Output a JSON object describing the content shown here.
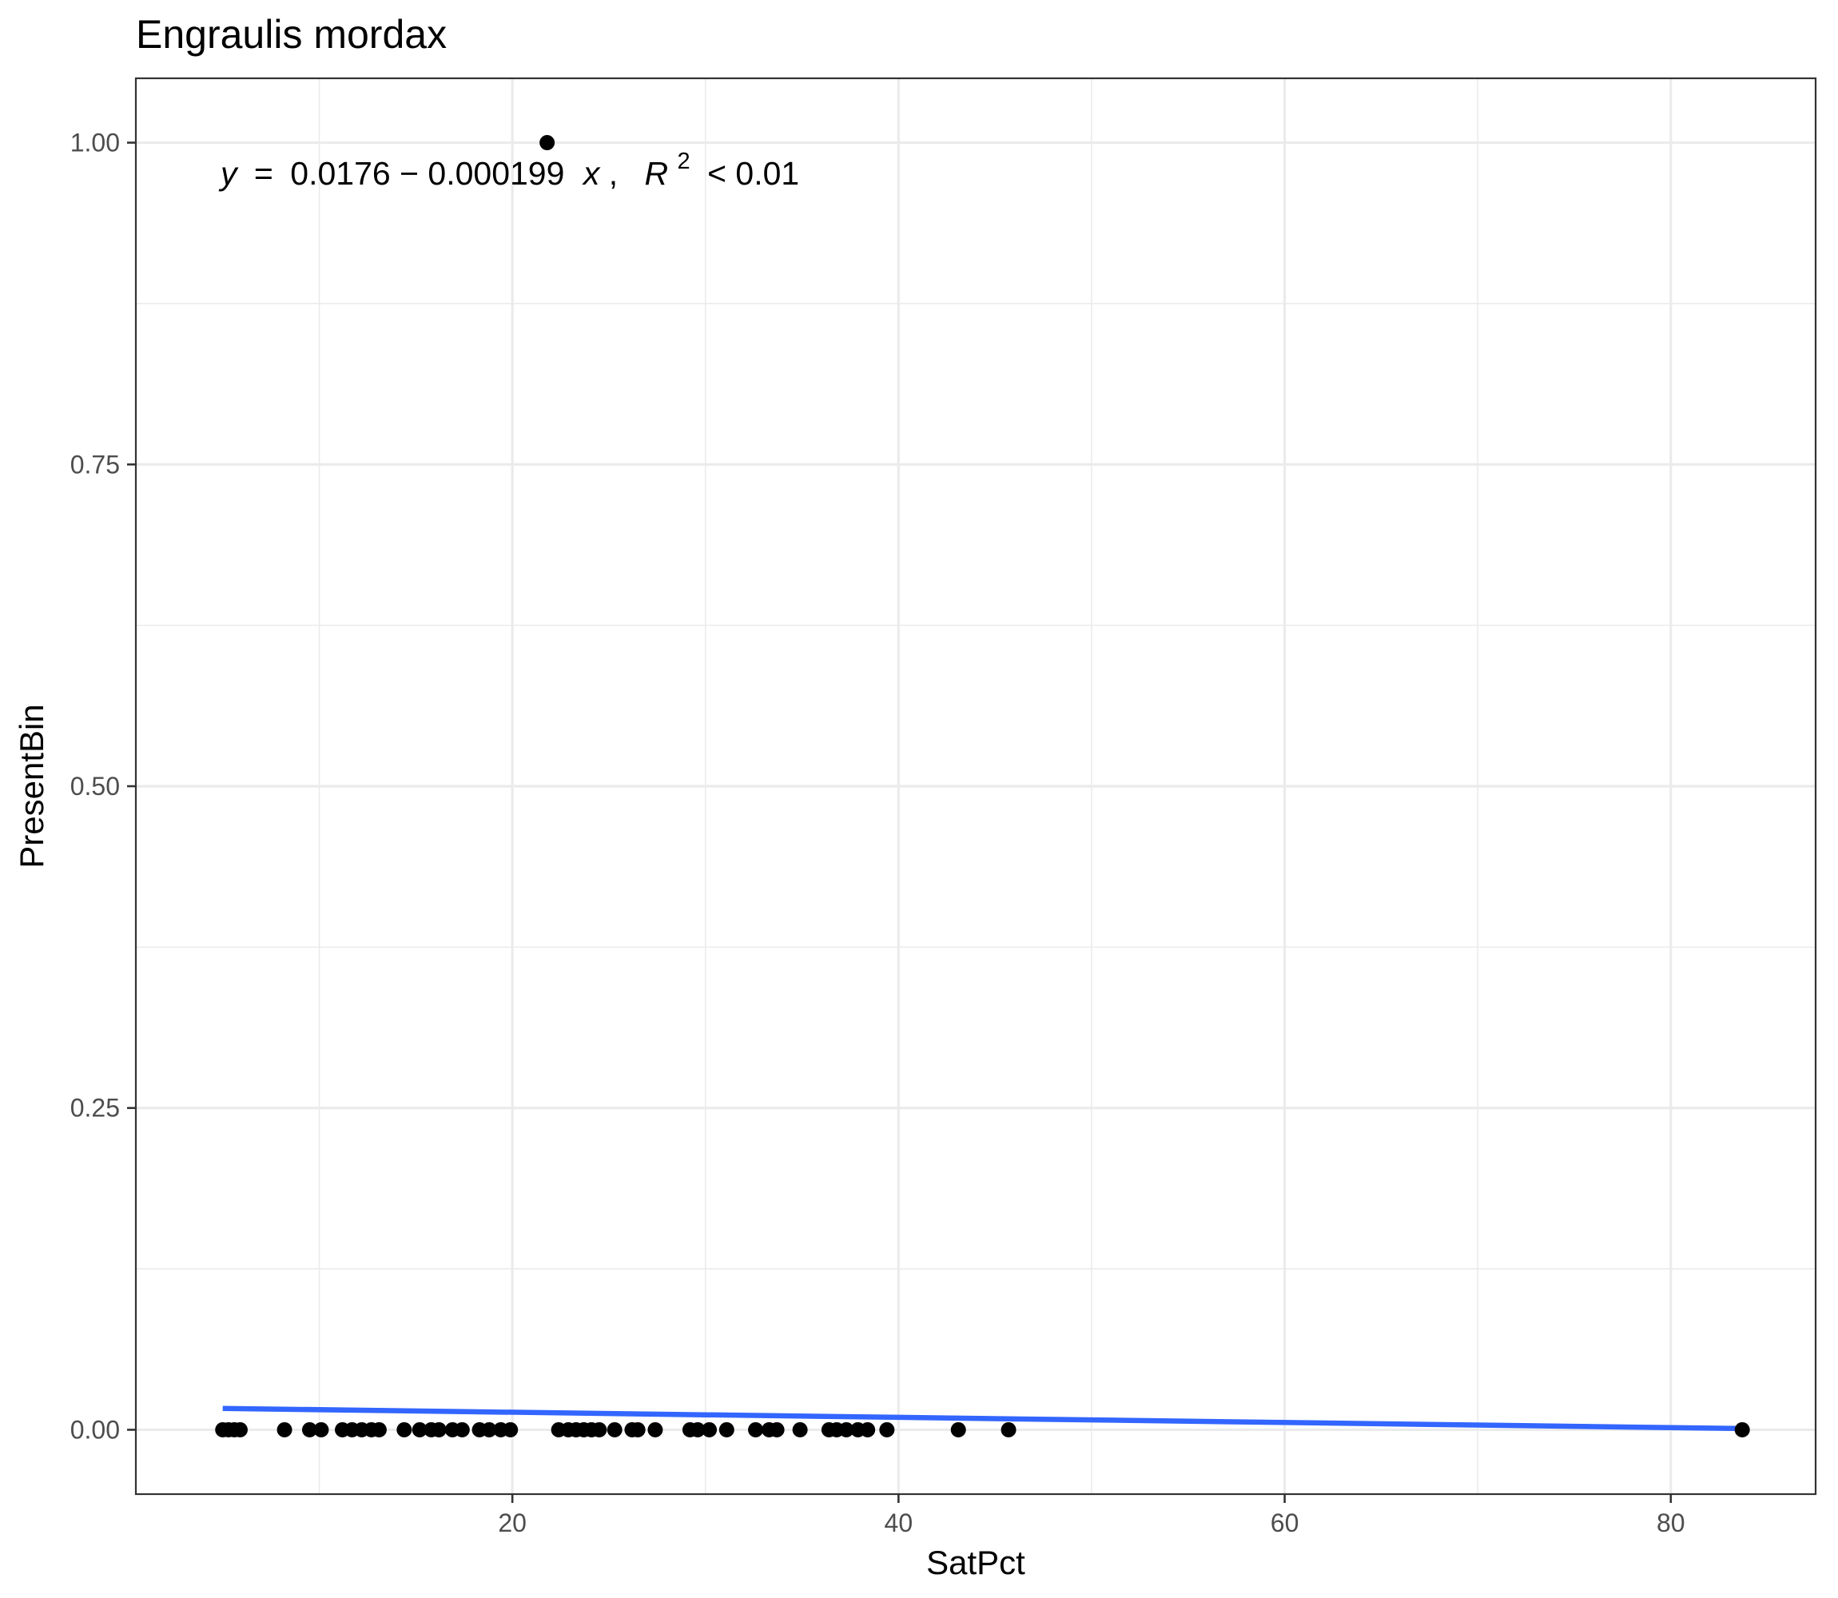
{
  "chart_data": {
    "type": "scatter",
    "title": "Engraulis mordax",
    "xlabel": "SatPct",
    "ylabel": "PresentBin",
    "xlim": [
      0.5,
      87.5
    ],
    "ylim": [
      -0.05,
      1.05
    ],
    "x_ticks": [
      20,
      40,
      60,
      80
    ],
    "x_tick_labels": [
      "20",
      "40",
      "60",
      "80"
    ],
    "y_ticks": [
      0,
      0.25,
      0.5,
      0.75,
      1.0
    ],
    "y_tick_labels": [
      "0.00",
      "0.25",
      "0.50",
      "0.75",
      "1.00"
    ],
    "grid": true,
    "legend": "none",
    "points": {
      "color": "#000000",
      "x": [
        5.0,
        5.3,
        5.6,
        5.9,
        8.2,
        9.5,
        10.1,
        11.2,
        11.7,
        12.2,
        12.7,
        13.1,
        14.4,
        15.2,
        15.8,
        16.2,
        16.9,
        17.4,
        18.3,
        18.8,
        19.4,
        19.9,
        21.8,
        22.4,
        22.9,
        23.3,
        23.7,
        24.1,
        24.5,
        25.3,
        26.2,
        26.5,
        27.4,
        29.2,
        29.6,
        30.2,
        31.1,
        32.6,
        33.3,
        33.7,
        34.9,
        36.4,
        36.8,
        37.3,
        37.9,
        38.4,
        39.4,
        43.1,
        45.7,
        83.7
      ],
      "y": [
        0,
        0,
        0,
        0,
        0,
        0,
        0,
        0,
        0,
        0,
        0,
        0,
        0,
        0,
        0,
        0,
        0,
        0,
        0,
        0,
        0,
        0,
        1,
        0,
        0,
        0,
        0,
        0,
        0,
        0,
        0,
        0,
        0,
        0,
        0,
        0,
        0,
        0,
        0,
        0,
        0,
        0,
        0,
        0,
        0,
        0,
        0,
        0,
        0,
        0
      ]
    },
    "fit_line": {
      "color": "#3366ff",
      "intercept": 0.0176,
      "slope": -0.000199,
      "x_range": [
        5.0,
        83.7
      ]
    },
    "annotation": {
      "lhs": "y",
      "equals": "=",
      "formula": "0.0176 − 0.000199",
      "xvar": "x",
      "sep": ",",
      "r": "R",
      "r_exp": "2",
      "rhs": "< 0.01"
    }
  }
}
